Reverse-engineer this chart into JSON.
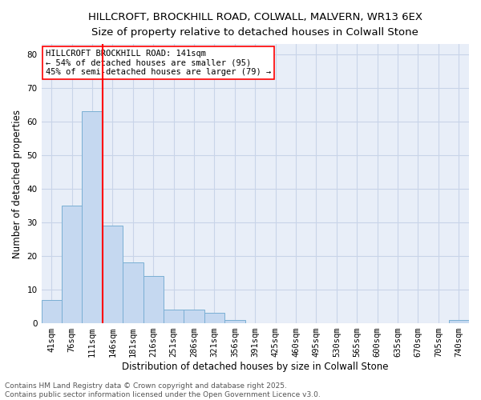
{
  "title1": "HILLCROFT, BROCKHILL ROAD, COLWALL, MALVERN, WR13 6EX",
  "title2": "Size of property relative to detached houses in Colwall Stone",
  "xlabel": "Distribution of detached houses by size in Colwall Stone",
  "ylabel": "Number of detached properties",
  "categories": [
    "41sqm",
    "76sqm",
    "111sqm",
    "146sqm",
    "181sqm",
    "216sqm",
    "251sqm",
    "286sqm",
    "321sqm",
    "356sqm",
    "391sqm",
    "425sqm",
    "460sqm",
    "495sqm",
    "530sqm",
    "565sqm",
    "600sqm",
    "635sqm",
    "670sqm",
    "705sqm",
    "740sqm"
  ],
  "values": [
    7,
    35,
    63,
    29,
    18,
    14,
    4,
    4,
    3,
    1,
    0,
    0,
    0,
    0,
    0,
    0,
    0,
    0,
    0,
    0,
    1
  ],
  "bar_color": "#c5d8f0",
  "bar_edge_color": "#7aafd4",
  "vline_color": "red",
  "annotation_text": "HILLCROFT BROCKHILL ROAD: 141sqm\n← 54% of detached houses are smaller (95)\n45% of semi-detached houses are larger (79) →",
  "annotation_box_color": "white",
  "annotation_box_edge_color": "red",
  "ylim": [
    0,
    83
  ],
  "yticks": [
    0,
    10,
    20,
    30,
    40,
    50,
    60,
    70,
    80
  ],
  "grid_color": "#c8d4e8",
  "background_color": "#e8eef8",
  "footer_text": "Contains HM Land Registry data © Crown copyright and database right 2025.\nContains public sector information licensed under the Open Government Licence v3.0.",
  "title_fontsize": 9.5,
  "title2_fontsize": 9,
  "label_fontsize": 8.5,
  "tick_fontsize": 7.5,
  "footer_fontsize": 6.5,
  "annot_fontsize": 7.5
}
